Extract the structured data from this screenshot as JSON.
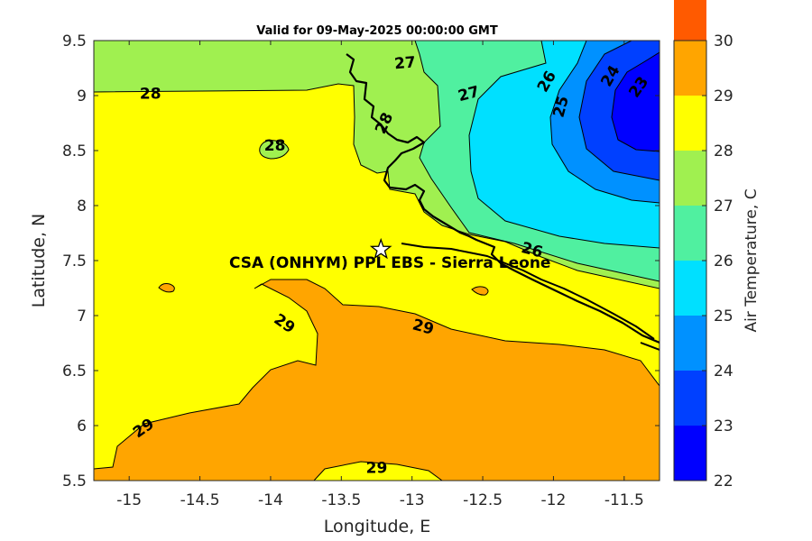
{
  "title": "Valid for 09-May-2025 00:00:00 GMT",
  "chart_data": {
    "type": "contour-map",
    "variable": "Air Temperature",
    "xlabel": "Longitude, E",
    "ylabel": "Latitude, N",
    "xlim": [
      -15.25,
      -11.25
    ],
    "ylim": [
      5.5,
      9.5
    ],
    "xticks": [
      "-15",
      "-14.5",
      "-14",
      "-13.5",
      "-13",
      "-12.5",
      "-12",
      "-11.5"
    ],
    "yticks": [
      "5.5",
      "6",
      "6.5",
      "7",
      "7.5",
      "8",
      "8.5",
      "9",
      "9.5"
    ],
    "site": {
      "label": "CSA (ONHYM) PPL EBS  - Sierra Leone",
      "lon": -13.22,
      "lat": 7.6,
      "marker": "star"
    },
    "contour_labels": [
      {
        "text": "28",
        "lon": -14.85,
        "lat": 9.02,
        "angle": 0
      },
      {
        "text": "28",
        "lon": -13.97,
        "lat": 8.55,
        "angle": 0
      },
      {
        "text": "27",
        "lon": -13.05,
        "lat": 9.3,
        "angle": -5
      },
      {
        "text": "27",
        "lon": -12.6,
        "lat": 9.02,
        "angle": -15
      },
      {
        "text": "28",
        "lon": -13.2,
        "lat": 8.75,
        "angle": -65
      },
      {
        "text": "26",
        "lon": -12.05,
        "lat": 9.13,
        "angle": -60
      },
      {
        "text": "25",
        "lon": -11.95,
        "lat": 8.9,
        "angle": -75
      },
      {
        "text": "24",
        "lon": -11.6,
        "lat": 9.18,
        "angle": -60
      },
      {
        "text": "23",
        "lon": -11.4,
        "lat": 9.08,
        "angle": -55
      },
      {
        "text": "26",
        "lon": -12.15,
        "lat": 7.6,
        "angle": 15
      },
      {
        "text": "29",
        "lon": -13.9,
        "lat": 6.93,
        "angle": 35
      },
      {
        "text": "29",
        "lon": -12.92,
        "lat": 6.9,
        "angle": 15
      },
      {
        "text": "29",
        "lon": -14.9,
        "lat": 5.98,
        "angle": -35
      },
      {
        "text": "29",
        "lon": -13.25,
        "lat": 5.62,
        "angle": 0
      }
    ],
    "colorbar": {
      "label": "Air Temperature, C",
      "levels": [
        22,
        23,
        24,
        25,
        26,
        27,
        28,
        29,
        30
      ],
      "ticks": [
        "22",
        "23",
        "24",
        "25",
        "26",
        "27",
        "28",
        "29",
        "30"
      ],
      "colors": [
        "#0000ff",
        "#0040ff",
        "#0091ff",
        "#00e0ff",
        "#50f0a0",
        "#a0f050",
        "#ffff00",
        "#ffa500",
        "#ff5a00"
      ]
    }
  }
}
